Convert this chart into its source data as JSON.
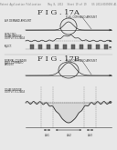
{
  "bg_color": "#e8e8e8",
  "line_color": "#333333",
  "text_color": "#333333",
  "light_text": "#555555",
  "title_17a": "F I G . 17A",
  "title_17b": "F I G . 17B",
  "header_text": "Patent Application Publication     May 8, 2012   Sheet 19 of 19    US 2012/0109494 A1"
}
